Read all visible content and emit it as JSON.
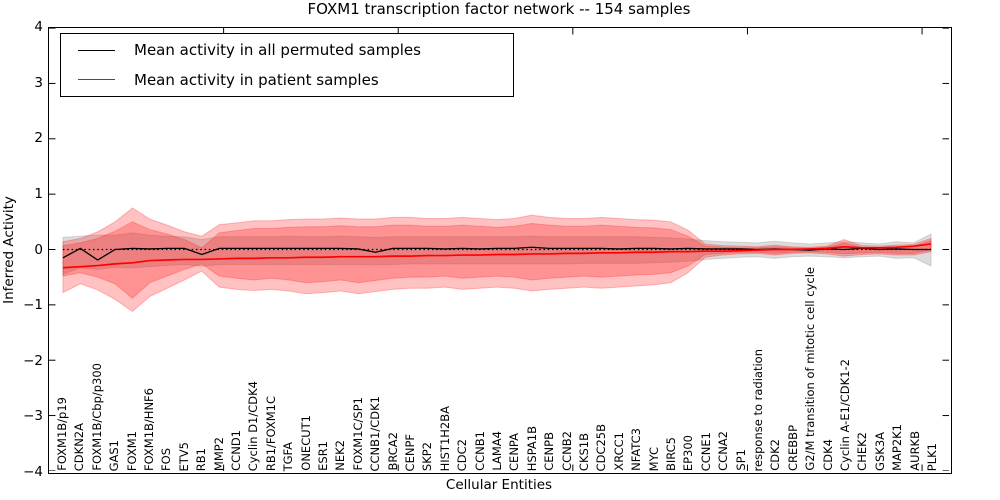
{
  "legend": [
    {
      "label": "Mean activity in all permuted samples",
      "color": "#000000"
    },
    {
      "label": "Mean activity in patient samples",
      "color": "#ff0000"
    }
  ],
  "chart_data": {
    "type": "line",
    "title": "FOXM1 transcription factor network -- 154 samples",
    "xlabel": "Cellular Entities",
    "ylabel": "Inferred Activity",
    "ylim": [
      -4,
      4
    ],
    "yticks": [
      4,
      3,
      2,
      1,
      0,
      -1,
      -2,
      -3,
      -4
    ],
    "grid": false,
    "zero_line": true,
    "legend_position": "upper left",
    "categories": [
      "FOXM1B/p19",
      "CDKN2A",
      "FOXM1B/Cbp/p300",
      "GAS1",
      "FOXM1",
      "FOXM1B/HNF6",
      "FOS",
      "ETV5",
      "RB1",
      "MMP2",
      "CCND1",
      "Cyclin D1/CDK4",
      "RB1/FOXM1C",
      "TGFA",
      "ONECUT1",
      "ESR1",
      "NEK2",
      "FOXM1C/SP1",
      "CCNB1/CDK1",
      "BRCA2",
      "CENPF",
      "SKP2",
      "HIST1H2BA",
      "CDC2",
      "CCNB1",
      "LAMA4",
      "CENPA",
      "HSPA1B",
      "CENPB",
      "CCNB2",
      "CKS1B",
      "CDC25B",
      "XRCC1",
      "NFATC3",
      "MYC",
      "BIRC5",
      "EP300",
      "CCNE1",
      "CCNA2",
      "SP1",
      "response to radiation",
      "CDK2",
      "CREBBP",
      "G2/M transition of mitotic cell cycle",
      "CDK4",
      "Cyclin A-E1/CDK1-2",
      "CHEK2",
      "GSK3A",
      "MAP2K1",
      "AURKB",
      "PLK1"
    ],
    "series": [
      {
        "name": "Mean activity in all permuted samples",
        "color": "#000000",
        "width": 1.3,
        "values": [
          -0.15,
          0.02,
          -0.19,
          0.0,
          0.02,
          0.01,
          0.02,
          0.02,
          -0.09,
          0.02,
          0.02,
          0.02,
          0.02,
          0.02,
          0.02,
          0.02,
          0.02,
          0.01,
          -0.05,
          0.02,
          0.02,
          0.02,
          0.01,
          0.02,
          0.01,
          0.02,
          0.02,
          0.04,
          0.02,
          0.02,
          0.02,
          0.02,
          0.01,
          0.02,
          0.02,
          0.01,
          0.02,
          0.01,
          0.01,
          0.01,
          0.0,
          0.01,
          0.0,
          -0.01,
          0.01,
          0.0,
          0.02,
          0.0,
          0.01,
          0.0,
          0.0
        ]
      },
      {
        "name": "Mean activity in patient samples",
        "color": "#ff0000",
        "width": 1.7,
        "values": [
          -0.33,
          -0.31,
          -0.29,
          -0.26,
          -0.24,
          -0.2,
          -0.19,
          -0.18,
          -0.18,
          -0.17,
          -0.16,
          -0.16,
          -0.15,
          -0.15,
          -0.14,
          -0.14,
          -0.13,
          -0.13,
          -0.13,
          -0.12,
          -0.12,
          -0.11,
          -0.11,
          -0.1,
          -0.1,
          -0.09,
          -0.09,
          -0.08,
          -0.08,
          -0.07,
          -0.07,
          -0.06,
          -0.06,
          -0.05,
          -0.05,
          -0.04,
          -0.04,
          -0.03,
          -0.03,
          -0.02,
          -0.01,
          0.0,
          0.0,
          0.01,
          0.02,
          0.05,
          0.03,
          0.03,
          0.04,
          0.06,
          0.1
        ]
      }
    ],
    "bands": [
      {
        "name": "permuted-samples-range",
        "color": "rgba(130,130,130,0.28)",
        "upper": [
          0.22,
          0.24,
          0.26,
          0.26,
          0.3,
          0.26,
          0.24,
          0.23,
          0.18,
          0.23,
          0.23,
          0.23,
          0.23,
          0.24,
          0.23,
          0.23,
          0.24,
          0.23,
          0.22,
          0.23,
          0.23,
          0.23,
          0.23,
          0.23,
          0.23,
          0.23,
          0.23,
          0.24,
          0.23,
          0.23,
          0.23,
          0.23,
          0.23,
          0.23,
          0.22,
          0.21,
          0.19,
          0.16,
          0.14,
          0.13,
          0.12,
          0.15,
          0.12,
          0.1,
          0.12,
          0.14,
          0.12,
          0.1,
          0.14,
          0.12,
          0.28
        ],
        "lower": [
          -0.45,
          -0.33,
          -0.36,
          -0.32,
          -0.33,
          -0.31,
          -0.29,
          -0.27,
          -0.3,
          -0.27,
          -0.27,
          -0.27,
          -0.27,
          -0.27,
          -0.27,
          -0.27,
          -0.27,
          -0.27,
          -0.28,
          -0.27,
          -0.26,
          -0.26,
          -0.26,
          -0.26,
          -0.26,
          -0.26,
          -0.26,
          -0.26,
          -0.26,
          -0.26,
          -0.25,
          -0.25,
          -0.25,
          -0.25,
          -0.24,
          -0.23,
          -0.21,
          -0.18,
          -0.16,
          -0.14,
          -0.13,
          -0.16,
          -0.13,
          -0.12,
          -0.13,
          -0.15,
          -0.13,
          -0.12,
          -0.16,
          -0.15,
          -0.3
        ]
      },
      {
        "name": "patient-samples-outer",
        "color": "rgba(255,25,25,0.27)",
        "upper": [
          0.14,
          0.2,
          0.32,
          0.5,
          0.75,
          0.55,
          0.44,
          0.32,
          0.24,
          0.45,
          0.48,
          0.52,
          0.52,
          0.54,
          0.55,
          0.55,
          0.57,
          0.55,
          0.55,
          0.58,
          0.58,
          0.56,
          0.56,
          0.58,
          0.56,
          0.54,
          0.56,
          0.62,
          0.58,
          0.56,
          0.56,
          0.58,
          0.56,
          0.54,
          0.53,
          0.5,
          0.35,
          0.1,
          0.07,
          0.06,
          0.05,
          0.08,
          0.05,
          0.04,
          0.06,
          0.18,
          0.07,
          0.06,
          0.08,
          0.09,
          0.2
        ],
        "lower": [
          -0.78,
          -0.62,
          -0.73,
          -0.9,
          -1.12,
          -0.85,
          -0.7,
          -0.55,
          -0.39,
          -0.68,
          -0.72,
          -0.74,
          -0.72,
          -0.75,
          -0.8,
          -0.78,
          -0.75,
          -0.8,
          -0.76,
          -0.72,
          -0.7,
          -0.7,
          -0.68,
          -0.72,
          -0.7,
          -0.68,
          -0.7,
          -0.75,
          -0.72,
          -0.7,
          -0.68,
          -0.7,
          -0.68,
          -0.66,
          -0.64,
          -0.6,
          -0.42,
          -0.14,
          -0.1,
          -0.08,
          -0.07,
          -0.1,
          -0.07,
          -0.06,
          -0.08,
          -0.12,
          -0.09,
          -0.08,
          -0.1,
          -0.1,
          -0.04
        ]
      },
      {
        "name": "patient-samples-inner",
        "color": "rgba(255,25,25,0.27)",
        "upper": [
          0.07,
          0.12,
          0.2,
          0.33,
          0.5,
          0.36,
          0.28,
          0.18,
          0.03,
          0.3,
          0.34,
          0.38,
          0.38,
          0.4,
          0.41,
          0.41,
          0.43,
          0.41,
          0.41,
          0.44,
          0.44,
          0.42,
          0.42,
          0.44,
          0.42,
          0.4,
          0.42,
          0.47,
          0.44,
          0.42,
          0.42,
          0.44,
          0.42,
          0.4,
          0.39,
          0.36,
          0.24,
          0.06,
          0.04,
          0.03,
          0.03,
          0.05,
          0.03,
          0.02,
          0.04,
          0.12,
          0.04,
          0.03,
          0.05,
          0.06,
          0.16
        ],
        "lower": [
          -0.48,
          -0.42,
          -0.5,
          -0.62,
          -0.88,
          -0.6,
          -0.48,
          -0.36,
          -0.26,
          -0.48,
          -0.52,
          -0.55,
          -0.52,
          -0.55,
          -0.6,
          -0.58,
          -0.55,
          -0.6,
          -0.56,
          -0.52,
          -0.5,
          -0.5,
          -0.48,
          -0.52,
          -0.5,
          -0.48,
          -0.5,
          -0.55,
          -0.52,
          -0.5,
          -0.48,
          -0.5,
          -0.48,
          -0.46,
          -0.45,
          -0.42,
          -0.3,
          -0.09,
          -0.07,
          -0.05,
          -0.05,
          -0.07,
          -0.05,
          -0.04,
          -0.05,
          -0.08,
          -0.06,
          -0.05,
          -0.07,
          -0.07,
          -0.01
        ]
      }
    ]
  }
}
